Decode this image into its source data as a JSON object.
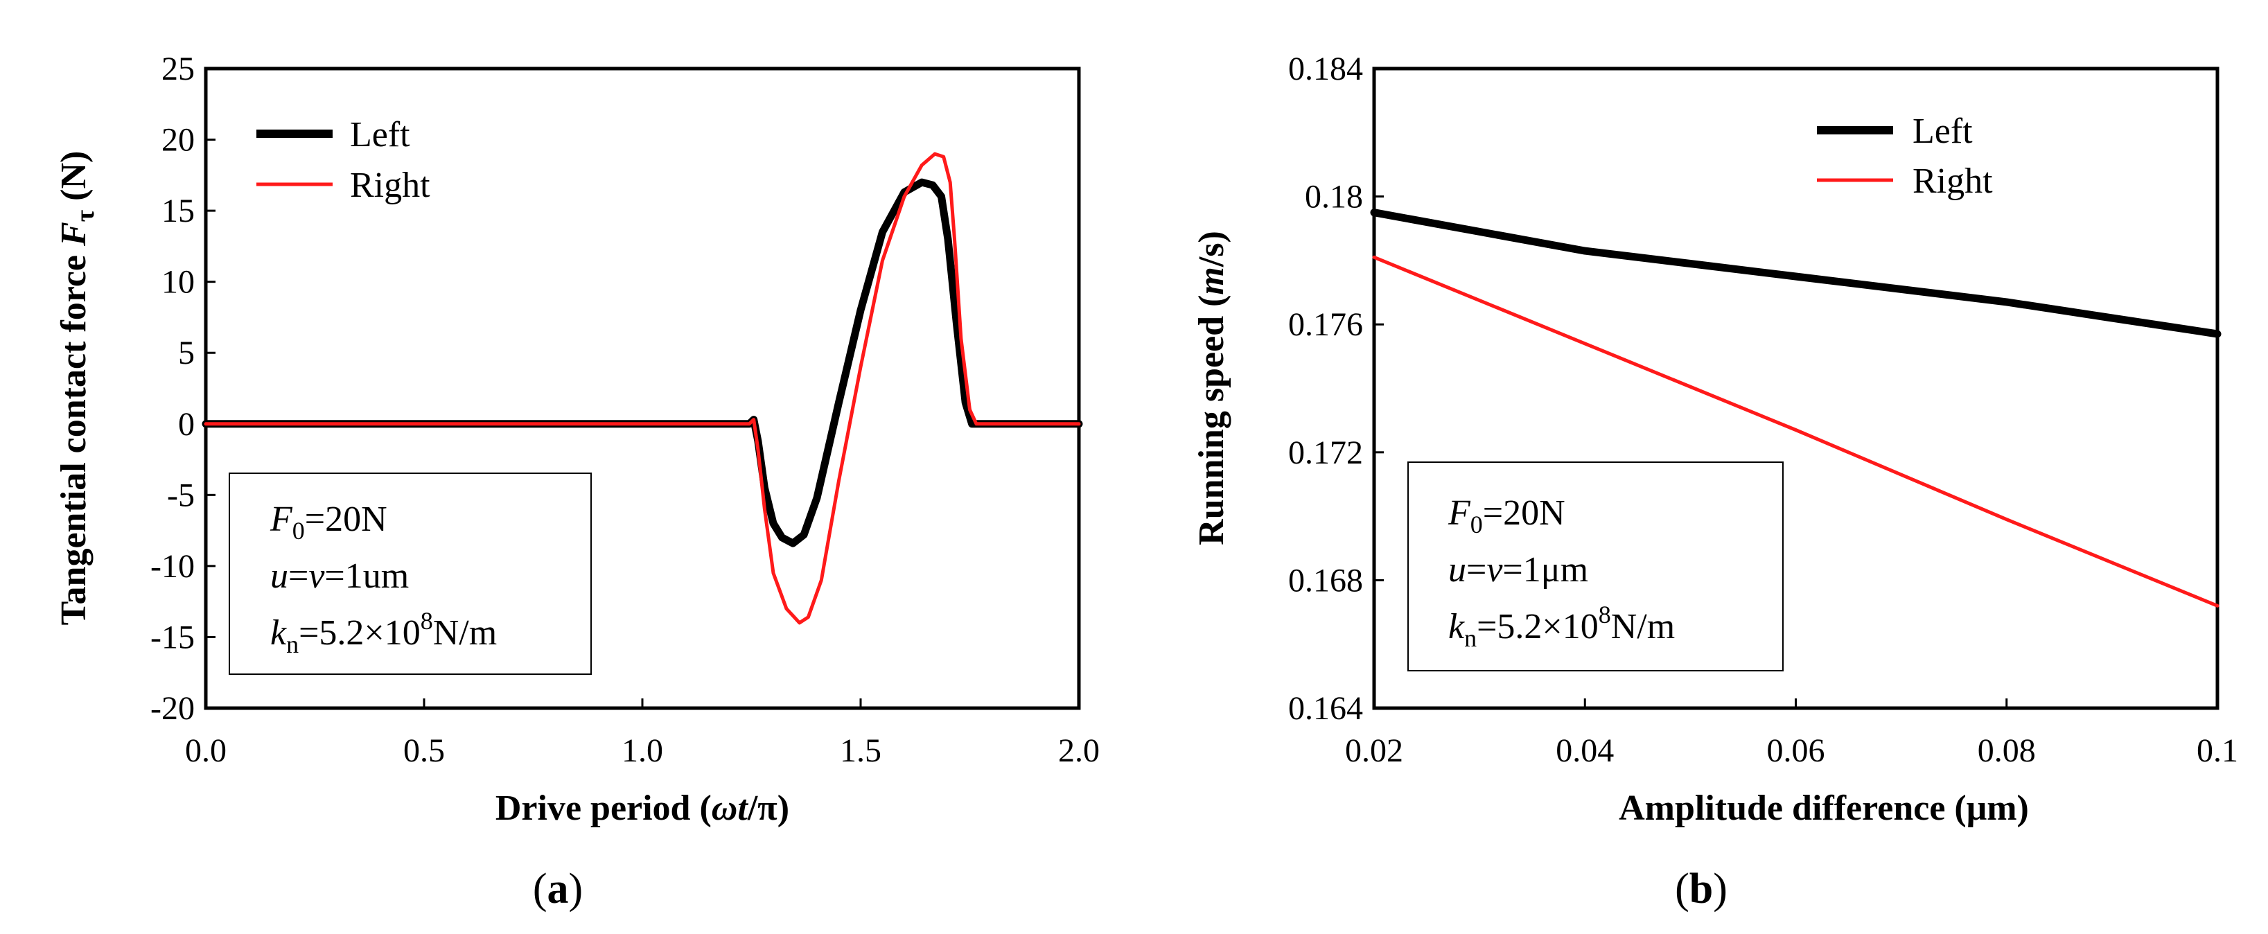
{
  "chart_data": [
    {
      "type": "line",
      "panel": "a",
      "caption": {
        "open": "(",
        "letter": "a",
        "close": ")"
      },
      "xlabel": {
        "prefix": "Drive period (",
        "omega": "ω",
        "t": "t",
        "slash": "/π)"
      },
      "ylabel": {
        "prefix": "Tangential contact force ",
        "F": "F",
        "sub": "τ",
        "suffix": " (N)"
      },
      "xlim": [
        0,
        2
      ],
      "ylim": [
        -20,
        25
      ],
      "xticks": [
        0,
        0.5,
        1,
        1.5,
        2
      ],
      "xtick_labels": [
        "0.0",
        "0.5",
        "1.0",
        "1.5",
        "2.0"
      ],
      "yticks": [
        -20,
        -15,
        -10,
        -5,
        0,
        5,
        10,
        15,
        20,
        25
      ],
      "ytick_labels": [
        "-20",
        "-15",
        "-10",
        "-5",
        "0",
        "5",
        "10",
        "15",
        "20",
        "25"
      ],
      "legend": {
        "position": "top-left"
      },
      "series": [
        {
          "name": "Left",
          "color": "#000000",
          "x": [
            0,
            1.2,
            1.245,
            1.255,
            1.265,
            1.28,
            1.3,
            1.32,
            1.345,
            1.37,
            1.4,
            1.45,
            1.5,
            1.55,
            1.6,
            1.64,
            1.665,
            1.685,
            1.7,
            1.72,
            1.74,
            1.755,
            1.765,
            2.0
          ],
          "y": [
            0,
            0,
            0,
            0.3,
            -1.2,
            -4.5,
            -7.0,
            -8.0,
            -8.4,
            -7.8,
            -5.2,
            1.5,
            8.0,
            13.5,
            16.3,
            17.0,
            16.8,
            16.0,
            13.0,
            7.0,
            1.5,
            0,
            0,
            0
          ]
        },
        {
          "name": "Right",
          "color": "#ff1a1a",
          "x": [
            0,
            1.2,
            1.245,
            1.255,
            1.265,
            1.28,
            1.3,
            1.33,
            1.36,
            1.38,
            1.41,
            1.45,
            1.5,
            1.55,
            1.6,
            1.64,
            1.67,
            1.69,
            1.705,
            1.715,
            1.73,
            1.75,
            1.765,
            2.0
          ],
          "y": [
            0,
            0,
            0,
            0.3,
            -1.8,
            -6.0,
            -10.5,
            -13.0,
            -14.0,
            -13.6,
            -11.0,
            -4.0,
            4.0,
            11.5,
            16.0,
            18.2,
            19.0,
            18.8,
            17.0,
            13.0,
            6.0,
            1.0,
            0,
            0
          ]
        }
      ],
      "info": {
        "line1": {
          "F": "F",
          "sub": "0",
          "rest": "=20N"
        },
        "line2": {
          "u": "u",
          "eq1": "=",
          "v": "v",
          "rest": "=1um"
        },
        "line3": {
          "k": "k",
          "sub": "n",
          "rest": "=5.2×10",
          "sup": "8",
          "unit": "N/m"
        }
      }
    },
    {
      "type": "line",
      "panel": "b",
      "caption": {
        "open": "(",
        "letter": "b",
        "close": ")"
      },
      "xlabel": {
        "text": "Amplitude difference (μm)"
      },
      "ylabel": {
        "prefix": "Running speed (",
        "m": "m",
        "suffix": "/s)"
      },
      "xlim": [
        0.02,
        0.1
      ],
      "ylim": [
        0.164,
        0.184
      ],
      "xticks": [
        0.02,
        0.04,
        0.06,
        0.08,
        0.1
      ],
      "xtick_labels": [
        "0.02",
        "0.04",
        "0.06",
        "0.08",
        "0.1"
      ],
      "yticks": [
        0.164,
        0.168,
        0.172,
        0.176,
        0.18,
        0.184
      ],
      "ytick_labels": [
        "0.164",
        "0.168",
        "0.172",
        "0.176",
        "0.18",
        "0.184"
      ],
      "legend": {
        "position": "top-right"
      },
      "series": [
        {
          "name": "Left",
          "color": "#000000",
          "x": [
            0.02,
            0.03,
            0.04,
            0.05,
            0.06,
            0.07,
            0.08,
            0.09,
            0.1
          ],
          "y": [
            0.1795,
            0.1789,
            0.1783,
            0.1779,
            0.1775,
            0.1771,
            0.1767,
            0.1762,
            0.1757
          ]
        },
        {
          "name": "Right",
          "color": "#ff1a1a",
          "x": [
            0.02,
            0.04,
            0.06,
            0.08,
            0.1
          ],
          "y": [
            0.1781,
            0.1754,
            0.1727,
            0.1699,
            0.1672
          ]
        }
      ],
      "info": {
        "line1": {
          "F": "F",
          "sub": "0",
          "rest": "=20N"
        },
        "line2": {
          "u": "u",
          "eq1": "=",
          "v": "v",
          "rest": "=1μm"
        },
        "line3": {
          "k": "k",
          "sub": "n",
          "rest": "=5.2×10",
          "sup": "8",
          "unit": "N/m"
        }
      }
    }
  ]
}
